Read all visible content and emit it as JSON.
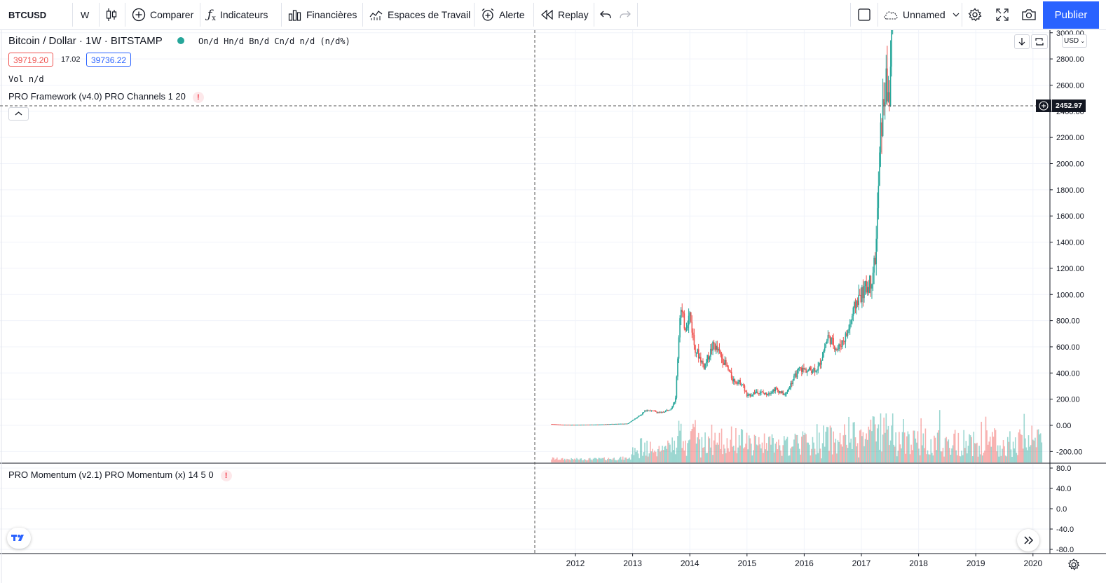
{
  "toolbar": {
    "symbol": "BTCUSD",
    "interval": "W",
    "compare_label": "Comparer",
    "indicators_label": "Indicateurs",
    "financials_label": "Financières",
    "workspaces_label": "Espaces de Travail",
    "alert_label": "Alerte",
    "replay_label": "Replay",
    "layout_name": "Unnamed",
    "publish_label": "Publier"
  },
  "legend": {
    "title": "Bitcoin / Dollar · 1W · BITSTAMP",
    "ohlc": "On/d  Hn/d  Bn/d  Cn/d  n/d (n/d%)",
    "bid": "39719.20",
    "spread": "17.02",
    "ask": "39736.22",
    "volume": "Vol  n/d",
    "indicator1": "PRO Framework (v4.0) PRO Channels 1 20",
    "indicator2": "PRO Momentum (v2.1) PRO Momentum (x) 14 5 0",
    "warn_mark": "!"
  },
  "price_axis": {
    "currency": "USD",
    "crosshair_price": "2452.97",
    "ticks": [
      "3000.00",
      "2800.00",
      "2600.00",
      "2400.00",
      "2200.00",
      "2000.00",
      "1800.00",
      "1600.00",
      "1400.00",
      "1200.00",
      "1000.00",
      "800.00",
      "600.00",
      "400.00",
      "200.00",
      "0.00",
      "-200.00"
    ]
  },
  "momentum_axis": {
    "ticks": [
      "80.0",
      "40.0",
      "0.0",
      "-40.0",
      "-80.0"
    ]
  },
  "time_axis": {
    "years": [
      "2012",
      "2013",
      "2014",
      "2015",
      "2016",
      "2017",
      "2018",
      "2019",
      "2020"
    ]
  },
  "colors": {
    "up": "#26a69a",
    "down": "#ef5350",
    "accent": "#2962ff",
    "grid": "#f0f3fa"
  },
  "chart_data": {
    "type": "candlestick",
    "title": "Bitcoin / Dollar · 1W · BITSTAMP",
    "xlabel": "",
    "ylabel": "",
    "ylim": [
      -200,
      3000
    ],
    "x_range": [
      "2011-08",
      "2020-03"
    ],
    "grid": true,
    "series": [
      {
        "x": [
          "2011-08",
          "2011-10",
          "2011-12",
          "2012-03",
          "2012-06",
          "2012-09",
          "2012-12",
          "2013-03",
          "2013-04",
          "2013-05",
          "2013-07",
          "2013-09",
          "2013-10",
          "2013-11",
          "2013-12",
          "2014-01",
          "2014-02",
          "2014-04",
          "2014-06",
          "2014-08",
          "2014-10",
          "2014-12",
          "2015-01",
          "2015-03",
          "2015-05",
          "2015-07",
          "2015-09",
          "2015-11",
          "2015-12",
          "2016-02",
          "2016-04",
          "2016-06",
          "2016-08",
          "2016-10",
          "2016-12",
          "2017-01",
          "2017-03",
          "2017-04",
          "2017-05",
          "2017-06",
          "2017-07",
          "2017-08"
        ],
        "close": [
          10,
          5,
          4,
          5,
          6,
          11,
          13,
          90,
          120,
          110,
          95,
          130,
          200,
          900,
          750,
          850,
          600,
          450,
          620,
          500,
          350,
          320,
          220,
          260,
          240,
          280,
          230,
          370,
          430,
          420,
          440,
          680,
          580,
          700,
          950,
          1000,
          1100,
          1300,
          2200,
          2600,
          2500,
          4300
        ]
      }
    ]
  }
}
